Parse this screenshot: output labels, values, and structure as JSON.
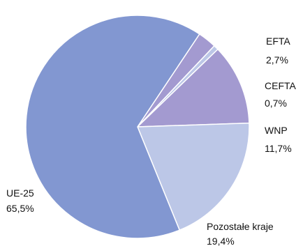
{
  "chart_data": {
    "type": "pie",
    "title": "",
    "slices": [
      {
        "label": "EFTA",
        "value_text": "2,7%",
        "value": 2.7,
        "color": "#a39ad0"
      },
      {
        "label": "CEFTA",
        "value_text": "0,7%",
        "value": 0.7,
        "color": "#bcc7e7"
      },
      {
        "label": "WNP",
        "value_text": "11,7%",
        "value": 11.7,
        "color": "#a39ad0"
      },
      {
        "label": "Pozostałe kraje",
        "value_text": "19,4%",
        "value": 19.4,
        "color": "#bcc7e7"
      },
      {
        "label": "UE-25",
        "value_text": "65,5%",
        "value": 65.5,
        "color": "#8297d1"
      }
    ]
  }
}
